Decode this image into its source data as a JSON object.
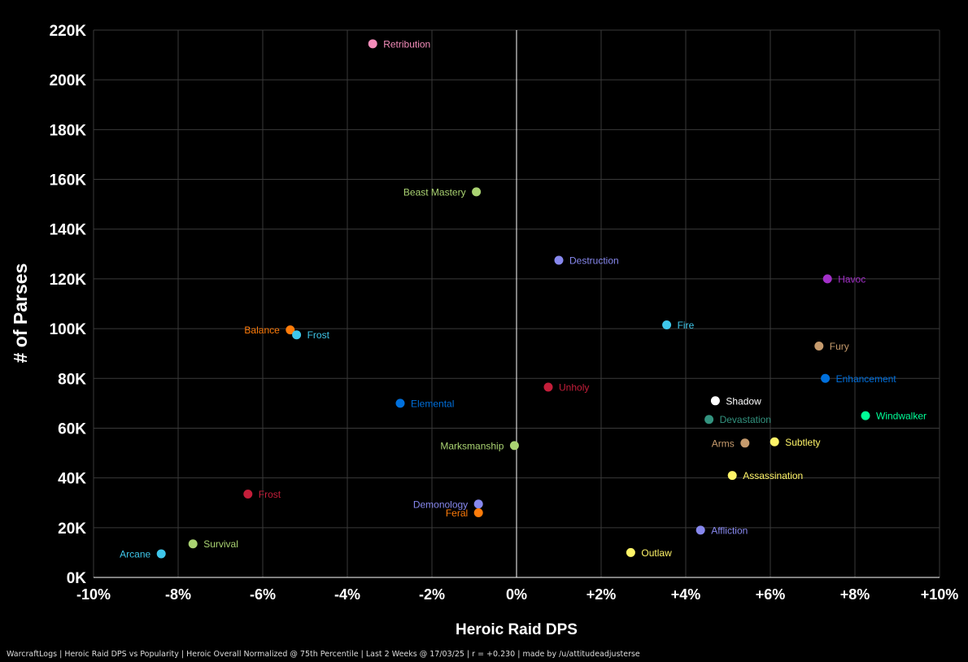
{
  "footer": "WarcraftLogs | Heroic Raid DPS vs Popularity | Heroic Overall Normalized @ 75th Percentile | Last 2 Weeks @ 17/03/25 | r = +0.230 | made by /u/attitudeadjusterse",
  "chart_data": {
    "type": "scatter",
    "title": "",
    "xlabel": "Heroic Raid DPS",
    "ylabel": "# of Parses",
    "xlim": [
      -10,
      10
    ],
    "ylim": [
      0,
      220000
    ],
    "xticks": [
      {
        "value": -10,
        "label": "-10%"
      },
      {
        "value": -8,
        "label": "-8%"
      },
      {
        "value": -6,
        "label": "-6%"
      },
      {
        "value": -4,
        "label": "-4%"
      },
      {
        "value": -2,
        "label": "-2%"
      },
      {
        "value": 0,
        "label": "0%"
      },
      {
        "value": 2,
        "label": "+2%"
      },
      {
        "value": 4,
        "label": "+4%"
      },
      {
        "value": 6,
        "label": "+6%"
      },
      {
        "value": 8,
        "label": "+8%"
      },
      {
        "value": 10,
        "label": "+10%"
      }
    ],
    "yticks": [
      {
        "value": 0,
        "label": "0K"
      },
      {
        "value": 20000,
        "label": "20K"
      },
      {
        "value": 40000,
        "label": "40K"
      },
      {
        "value": 60000,
        "label": "60K"
      },
      {
        "value": 80000,
        "label": "80K"
      },
      {
        "value": 100000,
        "label": "100K"
      },
      {
        "value": 120000,
        "label": "120K"
      },
      {
        "value": 140000,
        "label": "140K"
      },
      {
        "value": 160000,
        "label": "160K"
      },
      {
        "value": 180000,
        "label": "180K"
      },
      {
        "value": 200000,
        "label": "200K"
      },
      {
        "value": 220000,
        "label": "220K"
      }
    ],
    "grid": true,
    "points": [
      {
        "name": "Retribution",
        "x": -3.4,
        "y": 214500,
        "color": "#F48CBA",
        "label_side": "right"
      },
      {
        "name": "Beast Mastery",
        "x": -0.95,
        "y": 155000,
        "color": "#AAD372",
        "label_side": "left"
      },
      {
        "name": "Destruction",
        "x": 1.0,
        "y": 127500,
        "color": "#8788EE",
        "label_side": "right"
      },
      {
        "name": "Havoc",
        "x": 7.35,
        "y": 120000,
        "color": "#A330C9",
        "label_side": "right"
      },
      {
        "name": "Balance",
        "x": -5.35,
        "y": 99500,
        "color": "#FF7C0A",
        "label_side": "left"
      },
      {
        "name": "Frost",
        "x": -5.2,
        "y": 97500,
        "color": "#3FC7EB",
        "label_side": "right"
      },
      {
        "name": "Fire",
        "x": 3.55,
        "y": 101500,
        "color": "#3FC7EB",
        "label_side": "right"
      },
      {
        "name": "Fury",
        "x": 7.15,
        "y": 93000,
        "color": "#C69B6D",
        "label_side": "right"
      },
      {
        "name": "Enhancement",
        "x": 7.3,
        "y": 80000,
        "color": "#0070DD",
        "label_side": "right"
      },
      {
        "name": "Unholy",
        "x": 0.75,
        "y": 76500,
        "color": "#C41E3A",
        "label_side": "right"
      },
      {
        "name": "Shadow",
        "x": 4.7,
        "y": 71000,
        "color": "#FFFFFF",
        "label_side": "right"
      },
      {
        "name": "Elemental",
        "x": -2.75,
        "y": 70000,
        "color": "#0070DD",
        "label_side": "right"
      },
      {
        "name": "Windwalker",
        "x": 8.25,
        "y": 65000,
        "color": "#00FF98",
        "label_side": "right"
      },
      {
        "name": "Devastation",
        "x": 4.55,
        "y": 63500,
        "color": "#33937F",
        "label_side": "right"
      },
      {
        "name": "Arms",
        "x": 5.4,
        "y": 54000,
        "color": "#C69B6D",
        "label_side": "left"
      },
      {
        "name": "Subtlety",
        "x": 6.1,
        "y": 54500,
        "color": "#FFF468",
        "label_side": "right"
      },
      {
        "name": "Marksmanship",
        "x": -0.05,
        "y": 53000,
        "color": "#AAD372",
        "label_side": "left"
      },
      {
        "name": "Assassination",
        "x": 5.1,
        "y": 41000,
        "color": "#FFF468",
        "label_side": "right"
      },
      {
        "name": "Frost",
        "x": -6.35,
        "y": 33500,
        "color": "#C41E3A",
        "label_side": "right"
      },
      {
        "name": "Demonology",
        "x": -0.9,
        "y": 29500,
        "color": "#8788EE",
        "label_side": "left"
      },
      {
        "name": "Feral",
        "x": -0.9,
        "y": 26000,
        "color": "#FF7C0A",
        "label_side": "left"
      },
      {
        "name": "Affliction",
        "x": 4.35,
        "y": 19000,
        "color": "#8788EE",
        "label_side": "right"
      },
      {
        "name": "Survival",
        "x": -7.65,
        "y": 13500,
        "color": "#AAD372",
        "label_side": "right"
      },
      {
        "name": "Arcane",
        "x": -8.4,
        "y": 9500,
        "color": "#3FC7EB",
        "label_side": "left"
      },
      {
        "name": "Outlaw",
        "x": 2.7,
        "y": 10000,
        "color": "#FFF468",
        "label_side": "right"
      }
    ]
  }
}
